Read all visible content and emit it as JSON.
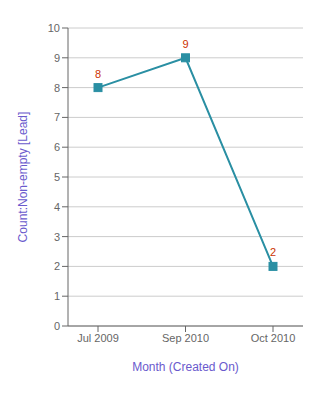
{
  "chart_data": {
    "type": "line",
    "categories": [
      "Jul 2009",
      "Sep 2010",
      "Oct 2010"
    ],
    "values": [
      8,
      9,
      2
    ],
    "color": "#2a8fa3",
    "marker": "square",
    "xlabel": "Month (Created On)",
    "ylabel": "Count:Non-empty [Lead]",
    "ylim": [
      0,
      10
    ],
    "yticks": [
      0,
      1,
      2,
      3,
      4,
      5,
      6,
      7,
      8,
      9,
      10
    ],
    "grid": true,
    "data_labels": true
  }
}
